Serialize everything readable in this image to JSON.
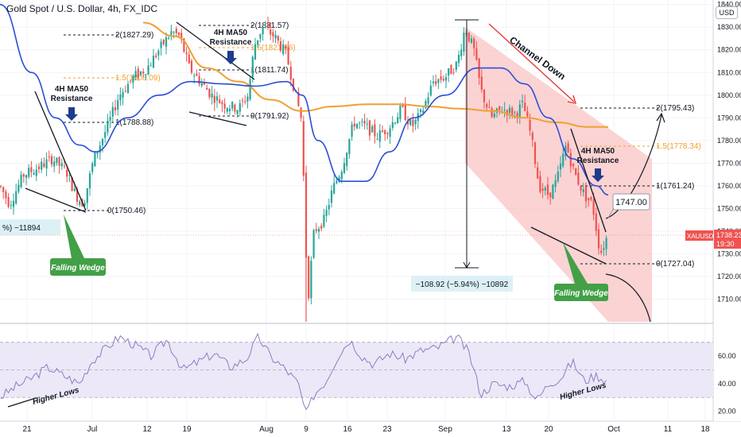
{
  "title": "Gold Spot / U.S. Dollar, 4h, FX_IDC",
  "currency_box": "USD",
  "price_tag": {
    "symbol": "XAUUSD",
    "price": "1738.23",
    "countdown": "19:30"
  },
  "colors": {
    "candle_up": "#26a69a",
    "candle_down": "#ef5350",
    "ma_blue": "#2b4fd6",
    "ma_orange": "#f0a030",
    "channel_fill": "#f9c4c4",
    "label_green": "#43a047",
    "rsi_line": "#8e7cc3",
    "rsi_band": "#ece8f7",
    "arrow_dark": "#1e3c8c",
    "arrow_red": "#e53935"
  },
  "annotations": {
    "ma50_resistance_1": [
      "4H MA50",
      "Resistance"
    ],
    "ma50_resistance_2": [
      "4H MA50",
      "Resistance"
    ],
    "ma50_resistance_3": [
      "4H MA50",
      "Resistance"
    ],
    "falling_wedge_1": "Falling Wedge",
    "falling_wedge_2": "Falling Wedge",
    "channel_down": "Channel Down",
    "higher_lows_1": "Higher Lows",
    "higher_lows_2": "Higher Lows",
    "target_box": "1747.00",
    "measure_left": "%) −11894",
    "measure_right": "−108.92 (−5.94%) −10892"
  },
  "fib_levels": [
    {
      "label": "2(1827.29)",
      "color": "#131722"
    },
    {
      "label": "1.5(1808.09)",
      "color": "#f0a030"
    },
    {
      "label": "1(1788.88)",
      "color": "#131722"
    },
    {
      "label": "0(1750.46)",
      "color": "#131722"
    },
    {
      "label": "2(1831.57)",
      "color": "#131722"
    },
    {
      "label": "1.5(1821.66)",
      "color": "#f0a030"
    },
    {
      "label": "1(1811.74)",
      "color": "#131722"
    },
    {
      "label": "0(1791.92)",
      "color": "#131722"
    },
    {
      "label": "2(1795.43)",
      "color": "#131722"
    },
    {
      "label": "1.5(1778.34)",
      "color": "#f0a030"
    },
    {
      "label": "1(1761.24)",
      "color": "#131722"
    },
    {
      "label": "0(1727.04)",
      "color": "#131722"
    }
  ],
  "chart_data": {
    "type": "candlestick",
    "price_axis": {
      "ticks": [
        1840.0,
        1830.0,
        1820.0,
        1810.0,
        1800.0,
        1790.0,
        1780.0,
        1770.0,
        1760.0,
        1750.0,
        1740.0,
        1730.0,
        1720.0,
        1710.0
      ],
      "ylim": [
        1700,
        1842
      ],
      "current": 1738.23
    },
    "rsi_axis": {
      "ticks": [
        60.0,
        40.0,
        20.0
      ],
      "ylim": [
        14,
        82
      ],
      "band": [
        30,
        70
      ]
    },
    "x_ticks": [
      "21",
      "Jul",
      "12",
      "19",
      "Aug",
      "9",
      "16",
      "23",
      "Sep",
      "13",
      "20",
      "Oct",
      "11",
      "18"
    ],
    "price_series": [
      [
        0,
        1760
      ],
      [
        12,
        1752
      ],
      [
        30,
        1765
      ],
      [
        48,
        1768
      ],
      [
        66,
        1772
      ],
      [
        84,
        1766
      ],
      [
        95,
        1756
      ],
      [
        105,
        1752
      ],
      [
        118,
        1772
      ],
      [
        135,
        1786
      ],
      [
        150,
        1800
      ],
      [
        168,
        1808
      ],
      [
        185,
        1812
      ],
      [
        200,
        1820
      ],
      [
        216,
        1828
      ],
      [
        226,
        1826
      ],
      [
        238,
        1812
      ],
      [
        252,
        1806
      ],
      [
        266,
        1800
      ],
      [
        282,
        1796
      ],
      [
        300,
        1794
      ],
      [
        312,
        1800
      ],
      [
        320,
        1822
      ],
      [
        330,
        1830
      ],
      [
        345,
        1826
      ],
      [
        360,
        1818
      ],
      [
        372,
        1800
      ],
      [
        380,
        1788
      ],
      [
        384,
        1735
      ],
      [
        388,
        1712
      ],
      [
        395,
        1740
      ],
      [
        408,
        1745
      ],
      [
        418,
        1758
      ],
      [
        430,
        1768
      ],
      [
        445,
        1788
      ],
      [
        460,
        1786
      ],
      [
        475,
        1782
      ],
      [
        490,
        1786
      ],
      [
        505,
        1794
      ],
      [
        518,
        1786
      ],
      [
        530,
        1792
      ],
      [
        545,
        1806
      ],
      [
        560,
        1808
      ],
      [
        575,
        1814
      ],
      [
        585,
        1830
      ],
      [
        596,
        1820
      ],
      [
        605,
        1802
      ],
      [
        618,
        1790
      ],
      [
        632,
        1794
      ],
      [
        648,
        1792
      ],
      [
        658,
        1796
      ],
      [
        668,
        1782
      ],
      [
        678,
        1760
      ],
      [
        690,
        1756
      ],
      [
        700,
        1762
      ],
      [
        712,
        1778
      ],
      [
        722,
        1766
      ],
      [
        735,
        1756
      ],
      [
        745,
        1752
      ],
      [
        755,
        1730
      ],
      [
        764,
        1738
      ]
    ],
    "ma_blue": [
      [
        0,
        1840
      ],
      [
        40,
        1810
      ],
      [
        70,
        1790
      ],
      [
        100,
        1778
      ],
      [
        120,
        1775
      ],
      [
        160,
        1790
      ],
      [
        200,
        1800
      ],
      [
        240,
        1806
      ],
      [
        280,
        1805
      ],
      [
        320,
        1804
      ],
      [
        360,
        1806
      ],
      [
        380,
        1800
      ],
      [
        400,
        1780
      ],
      [
        430,
        1762
      ],
      [
        460,
        1762
      ],
      [
        490,
        1775
      ],
      [
        520,
        1790
      ],
      [
        560,
        1800
      ],
      [
        600,
        1812
      ],
      [
        630,
        1812
      ],
      [
        660,
        1805
      ],
      [
        690,
        1790
      ],
      [
        720,
        1772
      ],
      [
        750,
        1760
      ],
      [
        765,
        1756
      ]
    ],
    "ma_orange": [
      [
        180,
        1832
      ],
      [
        220,
        1826
      ],
      [
        260,
        1812
      ],
      [
        300,
        1806
      ],
      [
        340,
        1798
      ],
      [
        380,
        1793
      ],
      [
        420,
        1795
      ],
      [
        460,
        1796
      ],
      [
        500,
        1796
      ],
      [
        540,
        1795
      ],
      [
        580,
        1794
      ],
      [
        620,
        1793
      ],
      [
        660,
        1790
      ],
      [
        700,
        1788
      ],
      [
        740,
        1786
      ],
      [
        765,
        1786
      ]
    ],
    "rsi_series": [
      [
        0,
        30
      ],
      [
        20,
        38
      ],
      [
        40,
        44
      ],
      [
        60,
        52
      ],
      [
        80,
        46
      ],
      [
        100,
        40
      ],
      [
        115,
        56
      ],
      [
        130,
        64
      ],
      [
        150,
        74
      ],
      [
        170,
        68
      ],
      [
        190,
        60
      ],
      [
        210,
        72
      ],
      [
        230,
        50
      ],
      [
        250,
        56
      ],
      [
        270,
        62
      ],
      [
        290,
        52
      ],
      [
        310,
        58
      ],
      [
        325,
        74
      ],
      [
        340,
        60
      ],
      [
        360,
        50
      ],
      [
        375,
        40
      ],
      [
        385,
        18
      ],
      [
        395,
        32
      ],
      [
        410,
        42
      ],
      [
        425,
        60
      ],
      [
        440,
        72
      ],
      [
        455,
        60
      ],
      [
        470,
        54
      ],
      [
        490,
        62
      ],
      [
        510,
        58
      ],
      [
        530,
        64
      ],
      [
        550,
        66
      ],
      [
        575,
        74
      ],
      [
        590,
        62
      ],
      [
        605,
        32
      ],
      [
        620,
        40
      ],
      [
        640,
        38
      ],
      [
        660,
        42
      ],
      [
        675,
        28
      ],
      [
        690,
        40
      ],
      [
        705,
        44
      ],
      [
        720,
        56
      ],
      [
        735,
        42
      ],
      [
        750,
        46
      ],
      [
        764,
        42
      ]
    ],
    "support_resistance_levels": [
      1827.29,
      1808.09,
      1788.88,
      1750.46,
      1831.57,
      1821.66,
      1811.74,
      1791.92,
      1795.43,
      1778.34,
      1761.24,
      1727.04
    ]
  }
}
